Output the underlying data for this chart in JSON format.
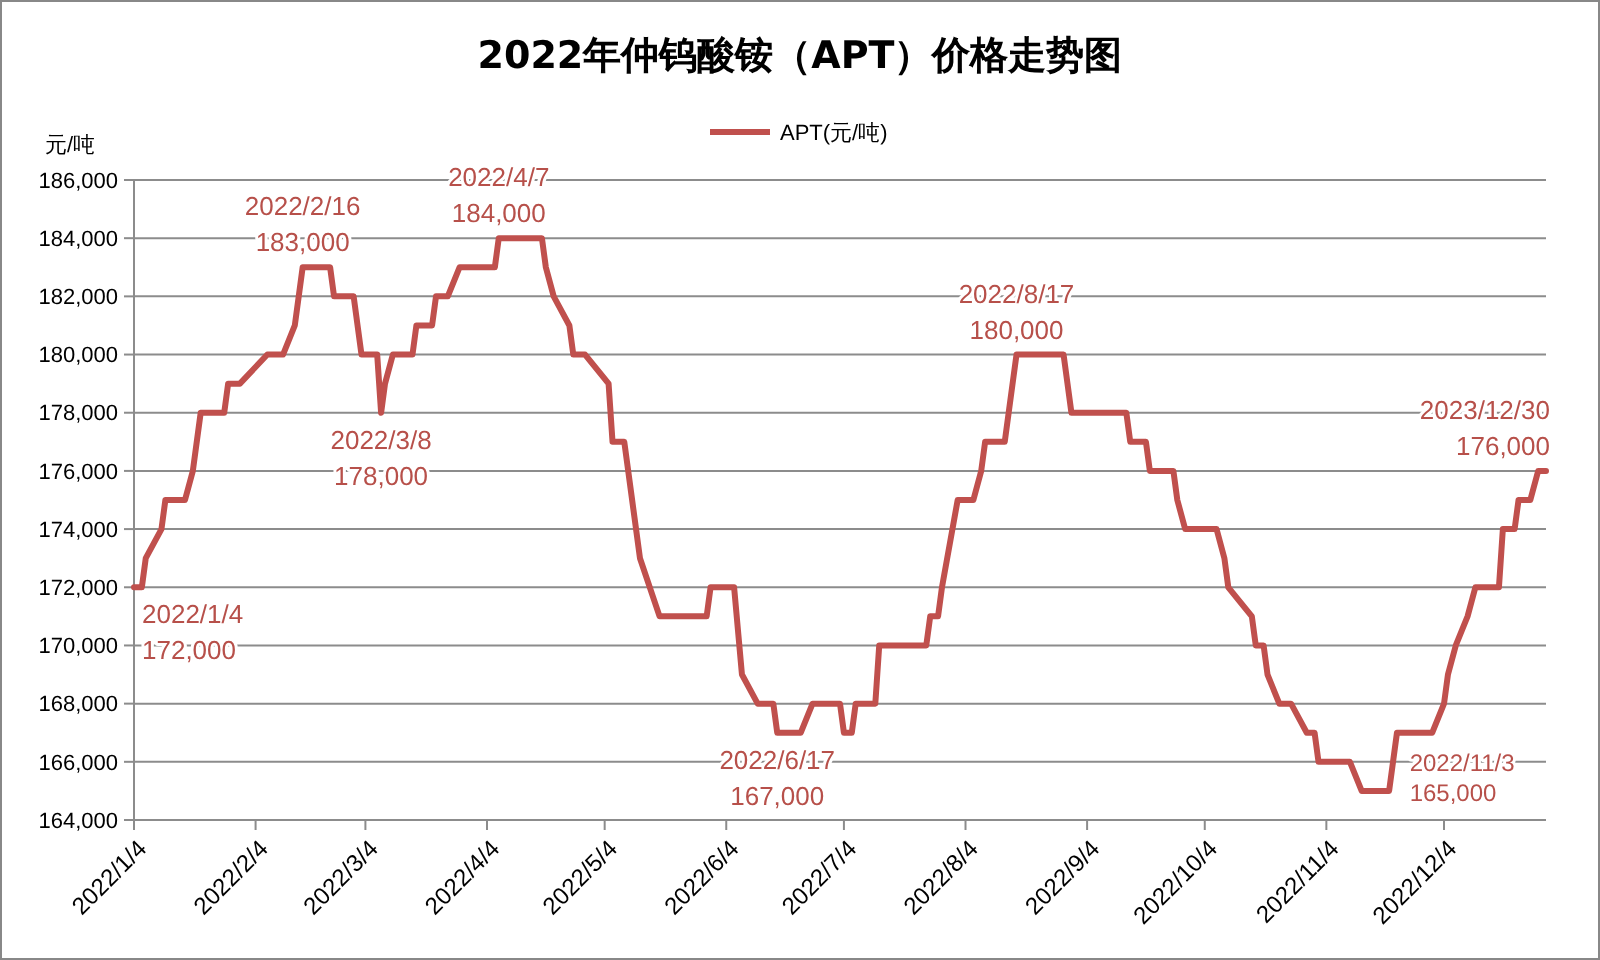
{
  "chart_data": {
    "type": "line",
    "title": "2022年仲钨酸铵（APT）价格走势图",
    "ylabel": "元/吨",
    "x": [
      "2022-01-04",
      "2022-01-06",
      "2022-01-07",
      "2022-01-11",
      "2022-01-12",
      "2022-01-17",
      "2022-01-19",
      "2022-01-21",
      "2022-01-27",
      "2022-01-28",
      "2022-01-31",
      "2022-02-07",
      "2022-02-11",
      "2022-02-14",
      "2022-02-16",
      "2022-02-23",
      "2022-02-24",
      "2022-03-01",
      "2022-03-03",
      "2022-03-07",
      "2022-03-08",
      "2022-03-09",
      "2022-03-11",
      "2022-03-16",
      "2022-03-17",
      "2022-03-21",
      "2022-03-22",
      "2022-03-25",
      "2022-03-28",
      "2022-04-06",
      "2022-04-07",
      "2022-04-18",
      "2022-04-19",
      "2022-04-21",
      "2022-04-25",
      "2022-04-26",
      "2022-04-29",
      "2022-05-05",
      "2022-05-06",
      "2022-05-09",
      "2022-05-10",
      "2022-05-11",
      "2022-05-13",
      "2022-05-18",
      "2022-05-30",
      "2022-05-31",
      "2022-06-06",
      "2022-06-08",
      "2022-06-12",
      "2022-06-16",
      "2022-06-17",
      "2022-06-23",
      "2022-06-26",
      "2022-07-03",
      "2022-07-04",
      "2022-07-06",
      "2022-07-07",
      "2022-07-12",
      "2022-07-13",
      "2022-07-25",
      "2022-07-26",
      "2022-07-28",
      "2022-07-29",
      "2022-08-02",
      "2022-08-06",
      "2022-08-08",
      "2022-08-09",
      "2022-08-14",
      "2022-08-17",
      "2022-08-29",
      "2022-08-30",
      "2022-08-31",
      "2022-09-14",
      "2022-09-15",
      "2022-09-19",
      "2022-09-20",
      "2022-09-26",
      "2022-09-27",
      "2022-09-29",
      "2022-10-07",
      "2022-10-09",
      "2022-10-10",
      "2022-10-16",
      "2022-10-17",
      "2022-10-19",
      "2022-10-20",
      "2022-10-23",
      "2022-10-26",
      "2022-10-30",
      "2022-11-01",
      "2022-11-02",
      "2022-11-10",
      "2022-11-13",
      "2022-11-20",
      "2022-11-22",
      "2022-12-01",
      "2022-12-04",
      "2022-12-05",
      "2022-12-07",
      "2022-12-10",
      "2022-12-12",
      "2022-12-18",
      "2022-12-19",
      "2022-12-22",
      "2022-12-23",
      "2022-12-26",
      "2022-12-28",
      "2022-12-30"
    ],
    "series": [
      {
        "name": "APT(元/吨)",
        "color": "#c0504d",
        "values": [
          172000,
          172000,
          173000,
          174000,
          175000,
          175000,
          176000,
          178000,
          178000,
          179000,
          179000,
          180000,
          180000,
          181000,
          183000,
          183000,
          182000,
          182000,
          180000,
          180000,
          178000,
          179000,
          180000,
          180000,
          181000,
          181000,
          182000,
          182000,
          183000,
          183000,
          184000,
          184000,
          183000,
          182000,
          181000,
          180000,
          180000,
          179000,
          177000,
          177000,
          176000,
          175000,
          173000,
          171000,
          171000,
          172000,
          172000,
          169000,
          168000,
          168000,
          167000,
          167000,
          168000,
          168000,
          167000,
          167000,
          168000,
          168000,
          170000,
          170000,
          171000,
          171000,
          172000,
          175000,
          175000,
          176000,
          177000,
          177000,
          180000,
          180000,
          179000,
          178000,
          178000,
          177000,
          177000,
          176000,
          176000,
          175000,
          174000,
          174000,
          173000,
          172000,
          171000,
          170000,
          170000,
          169000,
          168000,
          168000,
          167000,
          167000,
          166000,
          166000,
          165000,
          165000,
          167000,
          167000,
          168000,
          169000,
          170000,
          171000,
          172000,
          172000,
          174000,
          174000,
          175000,
          175000,
          176000,
          176000
        ]
      }
    ],
    "xlim": [
      "2022-01-04",
      "2022-12-30"
    ],
    "xticks": [
      {
        "value": "2022-01-04",
        "label": "2022/1/4"
      },
      {
        "value": "2022-02-04",
        "label": "2022/2/4"
      },
      {
        "value": "2022-03-04",
        "label": "2022/3/4"
      },
      {
        "value": "2022-04-04",
        "label": "2022/4/4"
      },
      {
        "value": "2022-05-04",
        "label": "2022/5/4"
      },
      {
        "value": "2022-06-04",
        "label": "2022/6/4"
      },
      {
        "value": "2022-07-04",
        "label": "2022/7/4"
      },
      {
        "value": "2022-08-04",
        "label": "2022/8/4"
      },
      {
        "value": "2022-09-04",
        "label": "2022/9/4"
      },
      {
        "value": "2022-10-04",
        "label": "2022/10/4"
      },
      {
        "value": "2022-11-04",
        "label": "2022/11/4"
      },
      {
        "value": "2022-12-04",
        "label": "2022/12/4"
      }
    ],
    "ylim": [
      164000,
      186000
    ],
    "yticks": [
      {
        "value": 164000,
        "label": "164,000"
      },
      {
        "value": 166000,
        "label": "166,000"
      },
      {
        "value": 168000,
        "label": "168,000"
      },
      {
        "value": 170000,
        "label": "170,000"
      },
      {
        "value": 172000,
        "label": "172,000"
      },
      {
        "value": 174000,
        "label": "174,000"
      },
      {
        "value": 176000,
        "label": "176,000"
      },
      {
        "value": 178000,
        "label": "178,000"
      },
      {
        "value": 180000,
        "label": "180,000"
      },
      {
        "value": 182000,
        "label": "182,000"
      },
      {
        "value": 184000,
        "label": "184,000"
      },
      {
        "value": 186000,
        "label": "186,000"
      }
    ],
    "grid": "y",
    "legend": "top",
    "marker": "none",
    "line_style": "solid",
    "annotations": [
      {
        "text": "2022/1/4\n172,000",
        "x": "2022-01-04",
        "y": 172000
      },
      {
        "text": "2022/2/16\n183,000",
        "x": "2022-02-16",
        "y": 183000
      },
      {
        "text": "2022/3/8\n178,000",
        "x": "2022-03-08",
        "y": 178000
      },
      {
        "text": "2022/4/7\n184,000",
        "x": "2022-04-07",
        "y": 184000
      },
      {
        "text": "2022/6/17\n167,000",
        "x": "2022-06-17",
        "y": 167000
      },
      {
        "text": "2022/8/17\n180,000",
        "x": "2022-08-17",
        "y": 180000
      },
      {
        "text": "2022/11/3\n165,000",
        "x": "2022-11-13",
        "y": 165000
      },
      {
        "text": "2023/12/30\n176,000",
        "x": "2022-12-30",
        "y": 176000
      }
    ]
  }
}
